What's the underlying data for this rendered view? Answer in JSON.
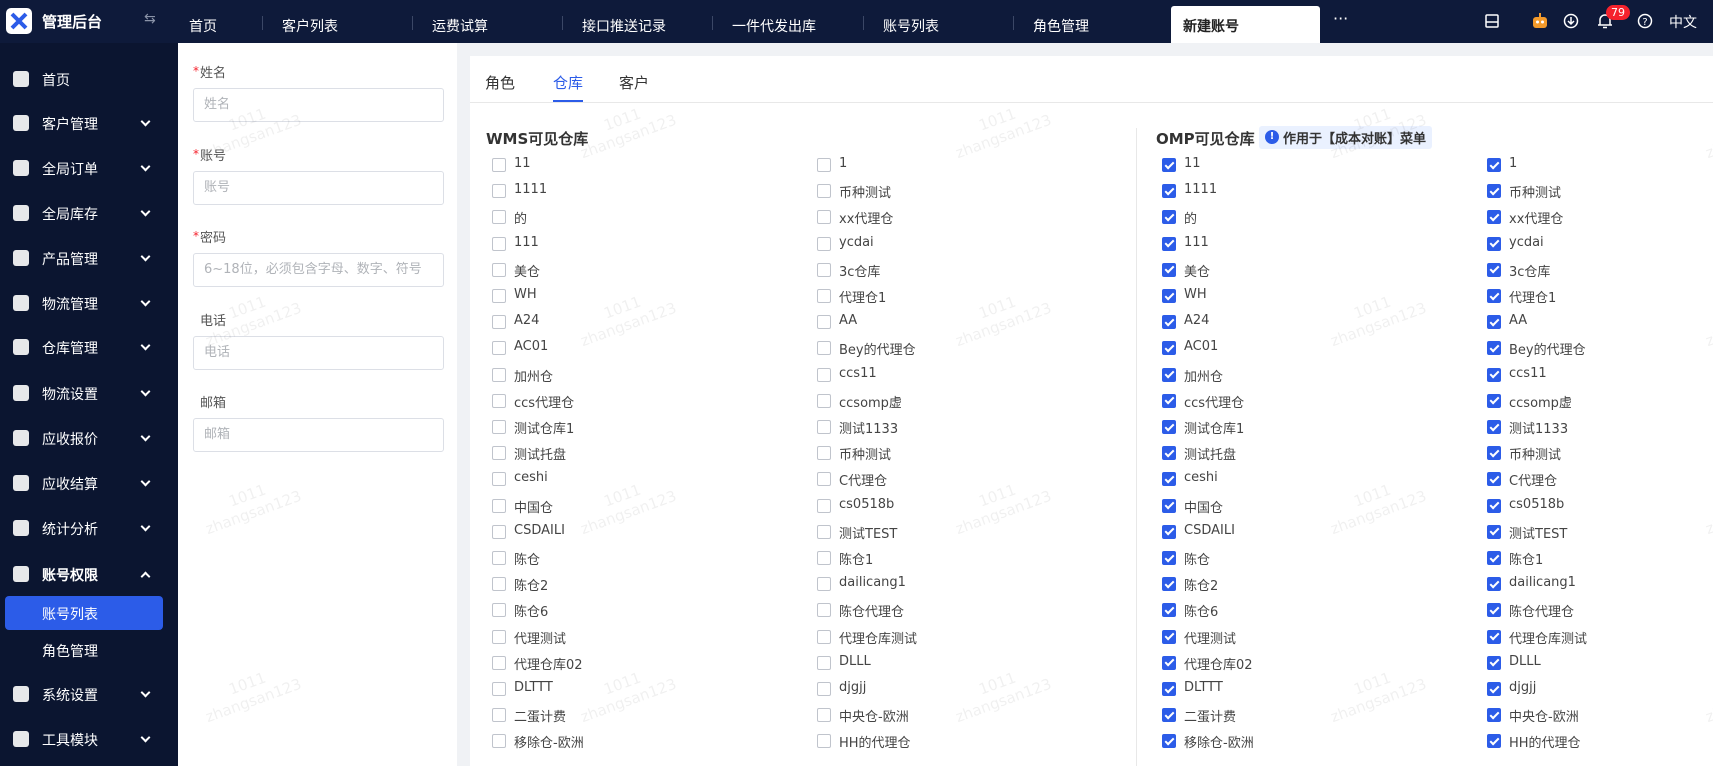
{
  "app": {
    "title": "管理后台"
  },
  "tabs": [
    "首页",
    "客户列表",
    "运费试算",
    "接口推送记录",
    "一件代发出库",
    "账号列表",
    "角色管理",
    "新建账号"
  ],
  "active_tab": 7,
  "header": {
    "notification_count": 79,
    "language": "中文"
  },
  "sidebar": {
    "items": [
      {
        "label": "首页"
      },
      {
        "label": "客户管理",
        "expandable": true
      },
      {
        "label": "全局订单",
        "expandable": true
      },
      {
        "label": "全局库存",
        "expandable": true
      },
      {
        "label": "产品管理",
        "expandable": true
      },
      {
        "label": "物流管理",
        "expandable": true
      },
      {
        "label": "仓库管理",
        "expandable": true
      },
      {
        "label": "物流设置",
        "expandable": true
      },
      {
        "label": "应收报价",
        "expandable": true
      },
      {
        "label": "应收结算",
        "expandable": true
      },
      {
        "label": "统计分析",
        "expandable": true
      },
      {
        "label": "账号权限",
        "expandable": true,
        "expanded": true,
        "children": [
          "账号列表",
          "角色管理"
        ],
        "active_child": 0
      },
      {
        "label": "系统设置",
        "expandable": true
      },
      {
        "label": "工具模块",
        "expandable": true
      }
    ]
  },
  "form": {
    "fields": [
      {
        "label": "姓名",
        "required": true,
        "placeholder": "姓名"
      },
      {
        "label": "账号",
        "required": true,
        "placeholder": "账号"
      },
      {
        "label": "密码",
        "required": true,
        "placeholder": "6~18位，必须包含字母、数字、符号"
      },
      {
        "label": "电话",
        "required": false,
        "placeholder": "电话"
      },
      {
        "label": "邮箱",
        "required": false,
        "placeholder": "邮箱"
      }
    ]
  },
  "panel": {
    "tabs": [
      "角色",
      "仓库",
      "客户"
    ],
    "active_tab": 1,
    "wms": {
      "title": "WMS可见仓库",
      "checked": false
    },
    "omp": {
      "title": "OMP可见仓库",
      "tag": "作用于【成本对账】菜单",
      "checked": true
    },
    "warehouses": [
      "11",
      "1",
      "1111",
      "币种测试",
      "的",
      "xx代理仓",
      "111",
      "ycdai",
      "美仓",
      "3c仓库",
      "WH",
      "代理仓1",
      "A24",
      "AA",
      "AC01",
      "Bey的代理仓",
      "加州仓",
      "ccs11",
      "ccs代理仓",
      "ccsomp虚",
      "测试仓库1",
      "测试1133",
      "测试托盘",
      "币种测试",
      "ceshi",
      "C代理仓",
      "中国仓",
      "cs0518b",
      "CSDAILI",
      "测试TEST",
      "陈仓",
      "陈仓1",
      "陈仓2",
      "dailicang1",
      "陈仓6",
      "陈仓代理仓",
      "代理测试",
      "代理仓库测试",
      "代理仓库02",
      "DLLL",
      "DLTTT",
      "djgjj",
      "二蛋计费",
      "中央仓-欧洲",
      "移除仓-欧洲",
      "HH的代理仓"
    ]
  },
  "watermark": [
    "1011",
    "zhangsan123"
  ]
}
